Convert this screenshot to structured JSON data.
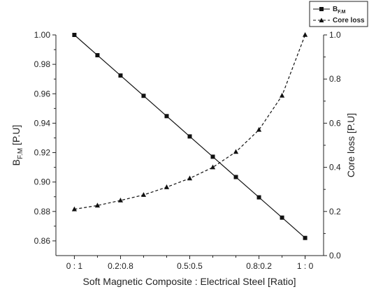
{
  "chart_data": {
    "type": "line",
    "title": "",
    "xlabel": "Soft Magnetic Composite : Electrical Steel [Ratio]",
    "ylabel_left": {
      "main": "B",
      "sub": "F.M",
      "unit": " [P.U]"
    },
    "ylabel_right": "Core loss [P.U]",
    "x_tick_labels": [
      {
        "x": 0.0,
        "label": "0 : 1"
      },
      {
        "x": 0.2,
        "label": "0.2:0.8"
      },
      {
        "x": 0.5,
        "label": "0.5:0.5"
      },
      {
        "x": 0.8,
        "label": "0.8:0.2"
      },
      {
        "x": 1.0,
        "label": "1 : 0"
      }
    ],
    "xlim": [
      -0.08,
      1.08
    ],
    "ylim_left": [
      0.85,
      1.0
    ],
    "ylim_right": [
      0.0,
      1.0
    ],
    "y_left_ticks": [
      "0.86",
      "0.88",
      "0.90",
      "0.92",
      "0.94",
      "0.96",
      "0.98",
      "1.00"
    ],
    "y_right_ticks": [
      "0.0",
      "0.2",
      "0.4",
      "0.6",
      "0.8",
      "1.0"
    ],
    "grid": false,
    "legend_position": "top-right",
    "series": [
      {
        "name": "B",
        "name_sub": "F.M",
        "axis": "left",
        "marker": "square",
        "line": "solid",
        "color": "#111111",
        "x": [
          0.0,
          0.1,
          0.2,
          0.3,
          0.4,
          0.5,
          0.6,
          0.7,
          0.8,
          0.9,
          1.0
        ],
        "y": [
          1.0,
          0.9862,
          0.9724,
          0.9586,
          0.9448,
          0.931,
          0.9172,
          0.9034,
          0.8896,
          0.8758,
          0.862
        ]
      },
      {
        "name": "Core loss",
        "axis": "right",
        "marker": "triangle",
        "line": "dashed",
        "color": "#111111",
        "x": [
          0.0,
          0.1,
          0.2,
          0.3,
          0.4,
          0.5,
          0.6,
          0.7,
          0.8,
          0.9,
          1.0
        ],
        "y": [
          0.21,
          0.227,
          0.25,
          0.275,
          0.31,
          0.35,
          0.4,
          0.47,
          0.57,
          0.725,
          1.0
        ]
      }
    ]
  }
}
